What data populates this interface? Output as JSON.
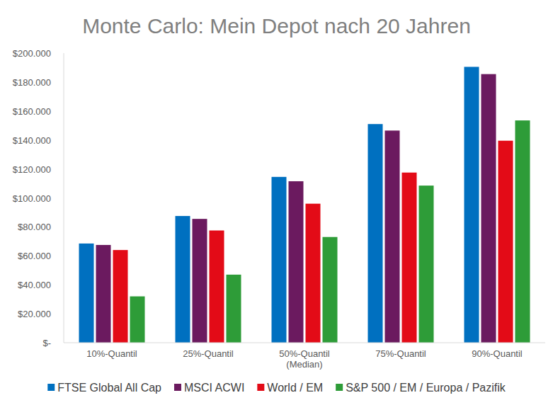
{
  "chart_data": {
    "type": "bar",
    "title": "Monte Carlo: Mein Depot nach 20 Jahren",
    "categories": [
      "10%-Quantil",
      "25%-Quantil",
      "50%-Quantil\n(Median)",
      "75%-Quantil",
      "90%-Quantil"
    ],
    "series": [
      {
        "name": "FTSE Global All Cap",
        "color": "#0070c0",
        "values": [
          68500,
          87500,
          114500,
          151000,
          190500
        ]
      },
      {
        "name": "MSCI ACWI",
        "color": "#6b1a5f",
        "values": [
          67500,
          85500,
          111500,
          146500,
          185500
        ]
      },
      {
        "name": "World / EM",
        "color": "#e30b17",
        "values": [
          64000,
          77500,
          96000,
          117500,
          139500
        ]
      },
      {
        "name": "S&P 500 / EM / Europa / Pazifik",
        "color": "#2e9c38",
        "values": [
          32000,
          47000,
          73000,
          108500,
          153500
        ]
      }
    ],
    "ylim": [
      0,
      200000
    ],
    "yticks": [
      {
        "value": 0,
        "label": "$-"
      },
      {
        "value": 20000,
        "label": "$20.000"
      },
      {
        "value": 40000,
        "label": "$40.000"
      },
      {
        "value": 60000,
        "label": "$60.000"
      },
      {
        "value": 80000,
        "label": "$80.000"
      },
      {
        "value": 100000,
        "label": "$100.000"
      },
      {
        "value": 120000,
        "label": "$120.000"
      },
      {
        "value": 140000,
        "label": "$140.000"
      },
      {
        "value": 160000,
        "label": "$160.000"
      },
      {
        "value": 180000,
        "label": "$180.000"
      },
      {
        "value": 200000,
        "label": "$200.000"
      }
    ],
    "grid": false,
    "legend": "bottom"
  }
}
